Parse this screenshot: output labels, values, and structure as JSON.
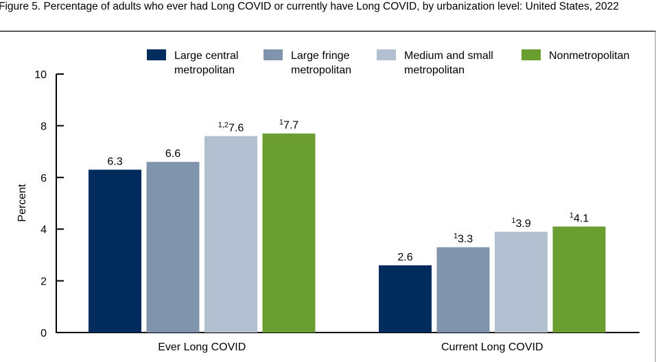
{
  "chart_data": {
    "type": "bar",
    "title": "Figure 5. Percentage of adults who ever had Long COVID or currently have Long COVID, by urbanization level: United States, 2022",
    "xlabel": "",
    "ylabel": "Percent",
    "ylim": [
      0,
      10
    ],
    "yticks": [
      "0",
      "2",
      "4",
      "6",
      "8",
      "10"
    ],
    "categories": [
      "Ever Long COVID",
      "Current Long COVID"
    ],
    "legend_placement": "top",
    "series": [
      {
        "name": "Large central metropolitan",
        "legend_lines": [
          "Large central",
          "metropolitan"
        ],
        "color": "#022c5e",
        "values": [
          6.3,
          2.6
        ],
        "notes": [
          "",
          ""
        ]
      },
      {
        "name": "Large fringe metropolitan",
        "legend_lines": [
          "Large fringe",
          "metropolitan"
        ],
        "color": "#8094ae",
        "values": [
          6.6,
          3.3
        ],
        "notes": [
          "",
          "1"
        ]
      },
      {
        "name": "Medium and small metropolitan",
        "legend_lines": [
          "Medium and small",
          "metropolitan"
        ],
        "color": "#b3c0d1",
        "values": [
          7.6,
          3.9
        ],
        "notes": [
          "1,2",
          "1"
        ]
      },
      {
        "name": "Nonmetropolitan",
        "legend_lines": [
          "Nonmetropolitan"
        ],
        "color": "#6b9e31",
        "values": [
          7.7,
          4.1
        ],
        "notes": [
          "1",
          "1"
        ]
      }
    ]
  }
}
